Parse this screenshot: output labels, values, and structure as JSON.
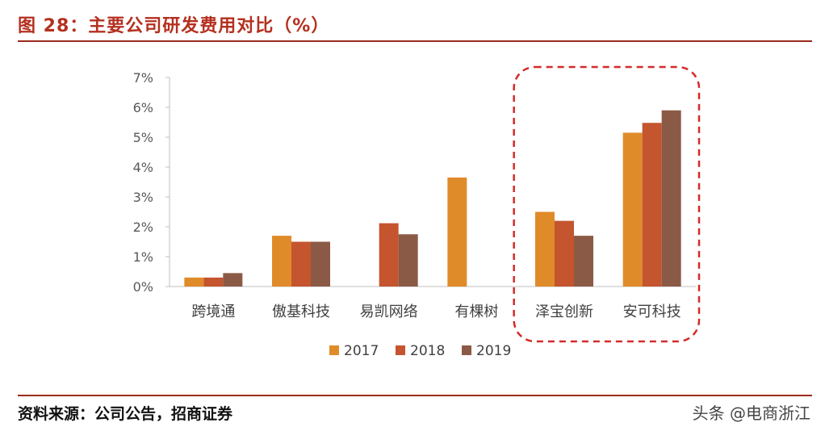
{
  "figure": {
    "title": "图 28：主要公司研发费用对比（%）",
    "source": "资料来源：公司公告，招商证券",
    "watermark": "头条 @电商浙江"
  },
  "colors": {
    "accent": "#b5301f",
    "series": [
      "#e08b2a",
      "#c4552f",
      "#8b5a47"
    ],
    "highlight_box": "#d42a2a"
  },
  "chart_data": {
    "type": "bar",
    "categories": [
      "跨境通",
      "傲基科技",
      "易凯网络",
      "有棵树",
      "泽宝创新",
      "安可科技"
    ],
    "series": [
      {
        "name": "2017",
        "values": [
          0.3,
          1.7,
          null,
          3.65,
          2.5,
          5.15
        ]
      },
      {
        "name": "2018",
        "values": [
          0.3,
          1.5,
          2.12,
          null,
          2.2,
          5.48
        ]
      },
      {
        "name": "2019",
        "values": [
          0.45,
          1.5,
          1.75,
          null,
          1.7,
          5.9
        ]
      }
    ],
    "ylim": [
      0,
      7
    ],
    "yticks": [
      0,
      1,
      2,
      3,
      4,
      5,
      6,
      7
    ],
    "ytick_labels": [
      "0%",
      "1%",
      "2%",
      "3%",
      "4%",
      "5%",
      "6%",
      "7%"
    ],
    "legend_position": "bottom",
    "grid": false,
    "highlighted_categories": [
      "泽宝创新",
      "安可科技"
    ]
  }
}
